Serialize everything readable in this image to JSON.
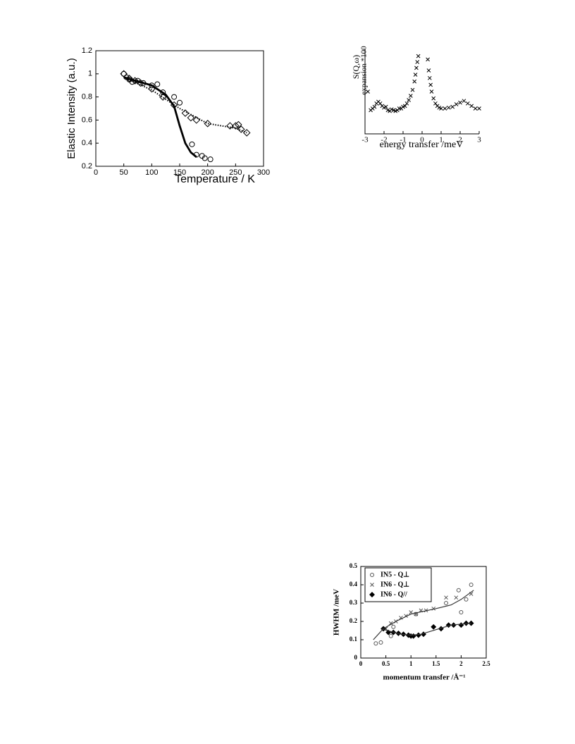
{
  "chart_data": [
    {
      "type": "scatter",
      "xlabel": "Temperature / K",
      "ylabel": "Elastic Intensity (a.u.)",
      "xlim": [
        0,
        300
      ],
      "xticks": [
        0,
        50,
        100,
        150,
        200,
        250,
        300
      ],
      "ylim": [
        0.2,
        1.2
      ],
      "yticks": [
        0.2,
        0.4,
        0.6,
        0.8,
        1,
        1.2
      ],
      "frame": "box",
      "series": [
        {
          "color": "#000000",
          "marker": "circle",
          "x": [
            50,
            55,
            60,
            65,
            75,
            85,
            100,
            110,
            120,
            140,
            150,
            172,
            180,
            190,
            195,
            205
          ],
          "values": [
            1.0,
            0.97,
            0.95,
            0.93,
            0.94,
            0.92,
            0.9,
            0.91,
            0.84,
            0.8,
            0.75,
            0.39,
            0.3,
            0.29,
            0.27,
            0.26
          ]
        },
        {
          "color": "#000000",
          "marker": "diamond",
          "x": [
            50,
            60,
            70,
            80,
            100,
            120,
            140,
            160,
            170,
            180,
            200,
            240,
            250,
            255,
            260,
            270
          ],
          "values": [
            1.0,
            0.96,
            0.94,
            0.92,
            0.87,
            0.8,
            0.73,
            0.66,
            0.62,
            0.6,
            0.57,
            0.55,
            0.55,
            0.56,
            0.52,
            0.49
          ]
        },
        {
          "color": "#000000",
          "line": "thick",
          "x": [
            50,
            100,
            125,
            140,
            150,
            160,
            170,
            180
          ],
          "values": [
            0.97,
            0.9,
            0.82,
            0.72,
            0.55,
            0.4,
            0.32,
            0.28
          ]
        },
        {
          "color": "#000000",
          "line": "dotted",
          "x": [
            50,
            100,
            150,
            200,
            250,
            270
          ],
          "values": [
            0.97,
            0.86,
            0.7,
            0.57,
            0.53,
            0.49
          ]
        }
      ]
    },
    {
      "type": "scatter",
      "xlabel": "energy transfer /meV",
      "ylabel": [
        "S(Q,ω)",
        "expansion *100"
      ],
      "xlim": [
        -3,
        3
      ],
      "xticks": [
        -3,
        -2,
        -1,
        0,
        1,
        2,
        3
      ],
      "ylim": [
        0,
        1
      ],
      "frame": "axes",
      "series": [
        {
          "color": "#000000",
          "marker": "cross",
          "x": [
            -2.85,
            -2.7,
            -2.6,
            -2.5,
            -2.4,
            -2.3,
            -2.2,
            -2.1,
            -2.0,
            -1.9,
            -1.8,
            -1.7,
            -1.6,
            -1.5,
            -1.4,
            -1.3,
            -1.2,
            -1.1,
            -1.0,
            -0.9,
            -0.8,
            -0.7,
            -0.6,
            -0.5,
            -0.4,
            -0.35,
            -0.3,
            -0.25,
            -0.2,
            0.3,
            0.35,
            0.4,
            0.45,
            0.5,
            0.6,
            0.7,
            0.8,
            0.9,
            1.0,
            1.2,
            1.4,
            1.6,
            1.8,
            2.0,
            2.2,
            2.4,
            2.6,
            2.8,
            3.0
          ],
          "values": [
            0.5,
            0.28,
            0.3,
            0.32,
            0.36,
            0.38,
            0.36,
            0.33,
            0.31,
            0.32,
            0.28,
            0.27,
            0.29,
            0.28,
            0.27,
            0.28,
            0.3,
            0.3,
            0.32,
            0.33,
            0.36,
            0.4,
            0.45,
            0.52,
            0.62,
            0.7,
            0.78,
            0.85,
            0.92,
            0.88,
            0.75,
            0.66,
            0.58,
            0.5,
            0.42,
            0.36,
            0.33,
            0.31,
            0.3,
            0.3,
            0.31,
            0.32,
            0.35,
            0.37,
            0.39,
            0.36,
            0.33,
            0.3,
            0.3
          ]
        }
      ]
    },
    {
      "type": "scatter",
      "xlabel": "momentum transfer /Å⁻¹",
      "ylabel": "HWHM /meV",
      "xlim": [
        0,
        2.5
      ],
      "xticks": [
        0,
        0.5,
        1,
        1.5,
        2,
        2.5
      ],
      "ylim": [
        0,
        0.5
      ],
      "yticks": [
        0,
        0.1,
        0.2,
        0.3,
        0.4,
        0.5
      ],
      "frame": "box",
      "legend": "upper left",
      "series": [
        {
          "name": "IN5 - Q⊥",
          "color": "#555555",
          "marker": "circle",
          "x": [
            0.3,
            0.4,
            0.6,
            0.65,
            1.1,
            1.7,
            1.95,
            2.0,
            2.1,
            2.2
          ],
          "values": [
            0.08,
            0.085,
            0.12,
            0.17,
            0.24,
            0.3,
            0.37,
            0.25,
            0.32,
            0.4
          ]
        },
        {
          "name": "IN6 - Q⊥",
          "color": "#555555",
          "marker": "cross",
          "x": [
            0.5,
            0.6,
            0.7,
            0.8,
            0.9,
            1.0,
            1.1,
            1.2,
            1.3,
            1.45,
            1.7,
            1.9,
            2.2
          ],
          "values": [
            0.16,
            0.19,
            0.2,
            0.22,
            0.23,
            0.25,
            0.24,
            0.26,
            0.26,
            0.27,
            0.33,
            0.33,
            0.35
          ]
        },
        {
          "name": "IN6 - Q//",
          "color": "#000000",
          "marker": "filled-diamond",
          "x": [
            0.45,
            0.55,
            0.65,
            0.75,
            0.85,
            0.95,
            1.0,
            1.05,
            1.15,
            1.25,
            1.45,
            1.6,
            1.75,
            1.85,
            2.0,
            2.1,
            2.2
          ],
          "values": [
            0.16,
            0.14,
            0.14,
            0.135,
            0.13,
            0.125,
            0.12,
            0.12,
            0.125,
            0.13,
            0.17,
            0.16,
            0.18,
            0.18,
            0.18,
            0.19,
            0.19
          ]
        },
        {
          "color": "#333333",
          "line": "thin",
          "x": [
            0.25,
            0.45,
            0.7,
            1.0,
            1.5,
            1.8,
            2.0,
            2.25
          ],
          "values": [
            0.1,
            0.16,
            0.2,
            0.24,
            0.27,
            0.29,
            0.32,
            0.37
          ]
        },
        {
          "color": "#333333",
          "line": "thin",
          "x": [
            0.4,
            0.6,
            0.8,
            1.0,
            1.2,
            1.5,
            1.8,
            2.0,
            2.2
          ],
          "values": [
            0.16,
            0.145,
            0.13,
            0.125,
            0.13,
            0.155,
            0.18,
            0.185,
            0.19
          ]
        }
      ]
    }
  ]
}
